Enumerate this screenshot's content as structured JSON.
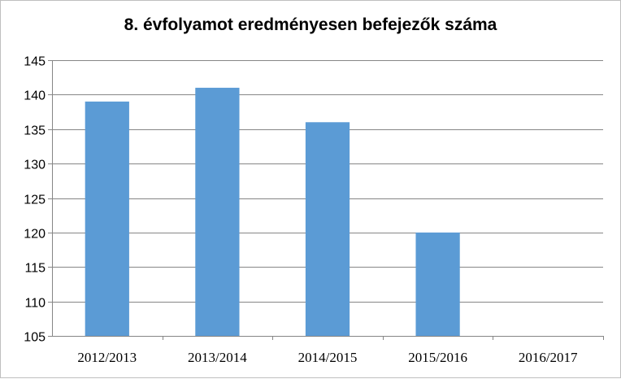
{
  "chart_data": {
    "type": "bar",
    "title": "8. évfolyamot eredményesen befejezők száma",
    "xlabel": "",
    "ylabel": "",
    "categories": [
      "2012/2013",
      "2013/2014",
      "2014/2015",
      "2015/2016",
      "2016/2017"
    ],
    "values": [
      139,
      141,
      136,
      120,
      null
    ],
    "ylim": [
      105,
      145
    ],
    "yticks": [
      "105",
      "110",
      "115",
      "120",
      "125",
      "130",
      "135",
      "140",
      "145"
    ],
    "grid": true,
    "legend": "none",
    "colors": {
      "bar": "#5b9bd5",
      "grid": "#868686",
      "axis": "#868686"
    }
  }
}
